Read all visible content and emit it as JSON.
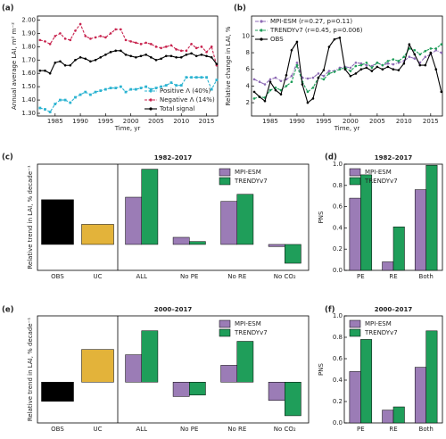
{
  "chart_data": [
    {
      "type": "line",
      "label": "(a)",
      "xlabel": "Time, yr",
      "ylabel": "Annual average LAI, m² m⁻²",
      "xlim": [
        1981.5,
        2017.2
      ],
      "xticks": [
        1985,
        1990,
        1995,
        2000,
        2005,
        2010,
        2015
      ],
      "ylim": [
        1.28,
        2.03
      ],
      "yticks": [
        {
          "value": 1.3,
          "label": "1.30"
        },
        {
          "value": 1.4,
          "label": "1.40"
        },
        {
          "value": 1.5,
          "label": "1.50"
        },
        {
          "value": 1.6,
          "label": "1.60"
        },
        {
          "value": 1.7,
          "label": "1.70"
        },
        {
          "value": 1.8,
          "label": "1.80"
        },
        {
          "value": 1.9,
          "label": "1.90"
        },
        {
          "value": 2.0,
          "label": "2.00"
        }
      ],
      "legend": "lower right",
      "x": [
        1982,
        1983,
        1984,
        1985,
        1986,
        1987,
        1988,
        1989,
        1990,
        1991,
        1992,
        1993,
        1994,
        1995,
        1996,
        1997,
        1998,
        1999,
        2000,
        2001,
        2002,
        2003,
        2004,
        2005,
        2006,
        2007,
        2008,
        2009,
        2010,
        2011,
        2012,
        2013,
        2014,
        2015,
        2016,
        2017
      ],
      "series": [
        {
          "name": "Positive Λ (40%)",
          "color": "#2bb3d1",
          "dash": "3,1.5",
          "marker": "square",
          "values": [
            1.34,
            1.33,
            1.31,
            1.37,
            1.4,
            1.4,
            1.38,
            1.42,
            1.44,
            1.46,
            1.44,
            1.46,
            1.47,
            1.48,
            1.49,
            1.49,
            1.5,
            1.46,
            1.48,
            1.48,
            1.49,
            1.5,
            1.48,
            1.49,
            1.5,
            1.51,
            1.53,
            1.51,
            1.51,
            1.57,
            1.57,
            1.57,
            1.57,
            1.57,
            1.48,
            1.55
          ]
        },
        {
          "name": "Negative Λ (14%)",
          "color": "#c8234e",
          "dash": "3,1.5",
          "marker": "circle",
          "values": [
            1.85,
            1.84,
            1.82,
            1.88,
            1.9,
            1.86,
            1.85,
            1.92,
            1.97,
            1.88,
            1.86,
            1.87,
            1.88,
            1.87,
            1.9,
            1.93,
            1.93,
            1.85,
            1.84,
            1.83,
            1.82,
            1.83,
            1.82,
            1.8,
            1.79,
            1.8,
            1.81,
            1.78,
            1.77,
            1.77,
            1.82,
            1.79,
            1.8,
            1.76,
            1.8,
            1.66
          ]
        },
        {
          "name": "Total signal",
          "color": "#000000",
          "dash": "none",
          "marker": "circle",
          "values": [
            1.62,
            1.62,
            1.6,
            1.68,
            1.69,
            1.66,
            1.66,
            1.7,
            1.72,
            1.71,
            1.69,
            1.7,
            1.72,
            1.74,
            1.76,
            1.77,
            1.77,
            1.74,
            1.73,
            1.72,
            1.73,
            1.74,
            1.72,
            1.7,
            1.71,
            1.73,
            1.73,
            1.72,
            1.72,
            1.74,
            1.75,
            1.73,
            1.74,
            1.73,
            1.72,
            1.67
          ]
        }
      ]
    },
    {
      "type": "line",
      "label": "(b)",
      "xlabel": "Time, yr",
      "ylabel": "Relative change in LAI, %",
      "xlim": [
        1981.5,
        2017.2
      ],
      "xticks": [
        1985,
        1990,
        1995,
        2000,
        2005,
        2010,
        2015
      ],
      "ylim": [
        0.4,
        12.4
      ],
      "yticks": [
        2,
        4,
        6,
        8,
        10
      ],
      "legend": "upper left",
      "x": [
        1982,
        1983,
        1984,
        1985,
        1986,
        1987,
        1988,
        1989,
        1990,
        1991,
        1992,
        1993,
        1994,
        1995,
        1996,
        1997,
        1998,
        1999,
        2000,
        2001,
        2002,
        2003,
        2004,
        2005,
        2006,
        2007,
        2008,
        2009,
        2010,
        2011,
        2012,
        2013,
        2014,
        2015,
        2016,
        2017
      ],
      "series": [
        {
          "name": "MPI-ESM (r=0.27, p=0.11)",
          "color": "#8e6bb5",
          "dash": "4,1.5,1,1.5",
          "marker": "circle",
          "values": [
            4.8,
            4.5,
            4.2,
            4.8,
            5.0,
            4.6,
            4.8,
            5.2,
            6.8,
            5.0,
            4.9,
            5.0,
            5.5,
            5.2,
            5.8,
            5.8,
            6.2,
            6.3,
            6.2,
            6.8,
            6.7,
            6.5,
            6.4,
            6.8,
            6.5,
            6.7,
            6.6,
            6.8,
            7.0,
            7.5,
            7.3,
            6.8,
            7.5,
            7.8,
            8.3,
            8.0
          ]
        },
        {
          "name": "TRENDYv7 (r=0.45, p=0.006)",
          "color": "#1f9e5a",
          "dash": "3,1.5",
          "marker": "circle",
          "values": [
            2.5,
            2.7,
            2.6,
            3.5,
            3.8,
            3.5,
            4.0,
            4.5,
            6.5,
            4.5,
            3.3,
            3.8,
            5.0,
            4.8,
            5.5,
            5.7,
            6.0,
            6.2,
            5.8,
            6.4,
            6.5,
            6.8,
            6.2,
            6.8,
            6.5,
            7.0,
            7.2,
            7.0,
            7.5,
            8.5,
            8.3,
            7.8,
            8.2,
            8.5,
            8.5,
            9.0
          ]
        },
        {
          "name": "OBS",
          "color": "#000000",
          "dash": "none",
          "marker": "circle",
          "values": [
            3.3,
            2.7,
            2.2,
            4.5,
            3.5,
            3.0,
            5.3,
            8.3,
            9.3,
            4.2,
            2.0,
            2.5,
            5.0,
            5.9,
            8.7,
            9.6,
            9.8,
            6.0,
            5.2,
            5.5,
            6.0,
            6.2,
            5.8,
            6.3,
            6.0,
            6.3,
            6.0,
            5.9,
            6.7,
            9.0,
            7.8,
            6.5,
            6.5,
            8.0,
            6.0,
            3.3
          ]
        }
      ]
    },
    {
      "type": "bar",
      "label": "(c)",
      "title": "1982–2017",
      "ylabel": "Relative trend in LAI, % decade⁻¹",
      "ylim": [
        -0.62,
        1.92
      ],
      "legend": "upper right",
      "reference": {
        "categories": [
          "OBS",
          "UC"
        ],
        "values": [
          1.07,
          0.48
        ],
        "colors": [
          "#000000",
          "#e3b33a"
        ]
      },
      "categories": [
        "ALL",
        "No PE",
        "No RE",
        "No CO₂"
      ],
      "series": [
        {
          "name": "MPI-ESM",
          "color": "#9b7cb6",
          "values": [
            1.13,
            0.17,
            1.03,
            -0.05
          ]
        },
        {
          "name": "TRENDYv7",
          "color": "#1f9e5a",
          "values": [
            1.8,
            0.07,
            1.2,
            -0.45
          ]
        }
      ]
    },
    {
      "type": "bar",
      "label": "(d)",
      "title": "1982–2017",
      "ylabel": "PNS",
      "ylim": [
        0,
        1.0
      ],
      "yticks": [
        {
          "value": 0,
          "label": "0.0"
        },
        {
          "value": 0.2,
          "label": "0.2"
        },
        {
          "value": 0.4,
          "label": "0.4"
        },
        {
          "value": 0.6,
          "label": "0.6"
        },
        {
          "value": 0.8,
          "label": "0.8"
        },
        {
          "value": 1.0,
          "label": "1.0"
        }
      ],
      "legend": "upper left",
      "categories": [
        "PE",
        "RE",
        "Both"
      ],
      "series": [
        {
          "name": "MPI-ESM",
          "color": "#9b7cb6",
          "values": [
            0.68,
            0.08,
            0.76
          ]
        },
        {
          "name": "TRENDYv7",
          "color": "#1f9e5a",
          "values": [
            0.9,
            0.41,
            0.99
          ]
        }
      ]
    },
    {
      "type": "bar",
      "label": "(e)",
      "title": "2000–2017",
      "ylabel": "Relative trend in LAI, % decade⁻¹",
      "ylim": [
        -0.85,
        1.38
      ],
      "legend": "upper right",
      "reference": {
        "categories": [
          "OBS",
          "UC"
        ],
        "values": [
          -0.4,
          0.68
        ],
        "colors": [
          "#000000",
          "#e3b33a"
        ]
      },
      "categories": [
        "ALL",
        "No PE",
        "No RE",
        "No CO₂"
      ],
      "series": [
        {
          "name": "MPI-ESM",
          "color": "#9b7cb6",
          "values": [
            0.57,
            -0.3,
            0.35,
            -0.38
          ]
        },
        {
          "name": "TRENDYv7",
          "color": "#1f9e5a",
          "values": [
            1.07,
            -0.27,
            0.85,
            -0.7
          ]
        }
      ]
    },
    {
      "type": "bar",
      "label": "(f)",
      "title": "2000–2017",
      "ylabel": "PNS",
      "ylim": [
        0,
        1.0
      ],
      "yticks": [
        {
          "value": 0,
          "label": "0.0"
        },
        {
          "value": 0.2,
          "label": "0.2"
        },
        {
          "value": 0.4,
          "label": "0.4"
        },
        {
          "value": 0.6,
          "label": "0.6"
        },
        {
          "value": 0.8,
          "label": "0.8"
        },
        {
          "value": 1.0,
          "label": "1.0"
        }
      ],
      "legend": "upper left",
      "categories": [
        "PE",
        "RE",
        "Both"
      ],
      "series": [
        {
          "name": "MPI-ESM",
          "color": "#9b7cb6",
          "values": [
            0.48,
            0.12,
            0.52
          ]
        },
        {
          "name": "TRENDYv7",
          "color": "#1f9e5a",
          "values": [
            0.78,
            0.15,
            0.86
          ]
        }
      ]
    }
  ]
}
